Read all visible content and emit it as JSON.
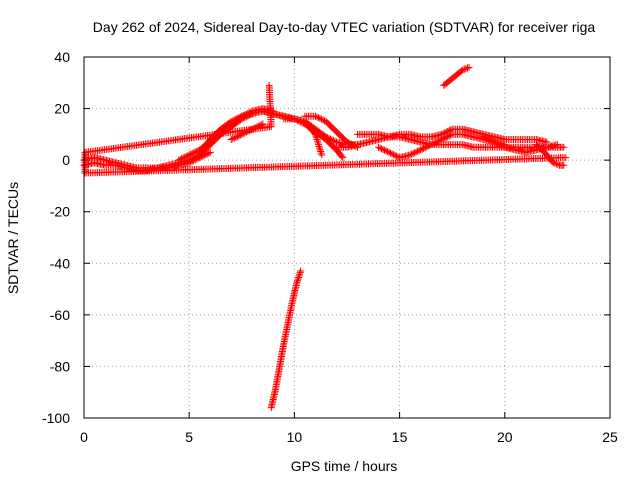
{
  "chart_data": {
    "type": "scatter",
    "title": "Day 262 of 2024, Sidereal Day-to-day VTEC variation (SDTVAR) for receiver riga",
    "xlabel": "GPS time / hours",
    "ylabel": "SDTVAR / TECUs",
    "xlim": [
      0,
      25
    ],
    "ylim": [
      -100,
      40
    ],
    "xticks": [
      0,
      5,
      10,
      15,
      20,
      25
    ],
    "yticks": [
      -100,
      -80,
      -60,
      -40,
      -20,
      0,
      20,
      40
    ],
    "grid": true,
    "marker": "+",
    "color": "#ff0000",
    "series": [
      {
        "name": "SDTVAR",
        "tracks": [
          {
            "x": [
              0,
              0.5,
              1,
              1.5,
              2,
              2.5,
              3,
              3.5,
              4,
              4.5,
              5,
              5.5,
              6,
              6.5,
              7,
              7.5,
              8,
              8.5,
              9,
              9.5,
              10,
              10.5,
              11,
              11.5,
              12,
              12.5,
              13
            ],
            "y": [
              0,
              1,
              0,
              -1,
              -2,
              -3,
              -3,
              -3,
              -2,
              -1,
              0,
              2,
              6,
              10,
              13,
              16,
              18,
              19,
              18,
              17,
              16,
              15,
              12,
              9,
              7,
              6,
              6
            ]
          },
          {
            "x": [
              0,
              0.5,
              1,
              1.5,
              2,
              2.5,
              3,
              3.5,
              4,
              4.5,
              5,
              5.5,
              6
            ],
            "y": [
              -2,
              -1,
              -2,
              -2,
              -3,
              -4,
              -4,
              -3,
              -3,
              -2,
              -1,
              1,
              3
            ]
          },
          {
            "x": [
              4.5,
              5,
              5.5,
              6,
              6.5,
              7,
              7.5,
              8,
              8.5,
              9
            ],
            "y": [
              0,
              2,
              4,
              7,
              11,
              14,
              17,
              19,
              20,
              19
            ]
          },
          {
            "x": [
              5.5,
              6,
              6.5,
              7,
              7.5,
              8
            ],
            "y": [
              3,
              8,
              12,
              15,
              17,
              18
            ]
          },
          {
            "x": [
              7,
              7.5,
              8,
              8.5
            ],
            "y": [
              8,
              10,
              12,
              14
            ]
          },
          {
            "x": [
              8.5,
              9,
              9.5,
              10,
              10.5,
              11,
              11.5,
              12,
              12.3
            ],
            "y": [
              19,
              18,
              17,
              16,
              14,
              11,
              8,
              4,
              1
            ]
          },
          {
            "x": [
              9.5,
              10,
              10.5,
              11,
              11.3
            ],
            "y": [
              16,
              16,
              15,
              10,
              2
            ]
          },
          {
            "x": [
              10.5,
              11,
              11.5,
              12,
              12.5,
              13
            ],
            "y": [
              17,
              17,
              15,
              11,
              7,
              5
            ]
          },
          {
            "x": [
              12,
              12.5,
              13,
              13.5,
              14,
              14.5,
              15,
              15.5,
              16,
              16.5,
              17,
              17.5,
              18,
              18.5,
              19,
              19.5,
              20,
              20.5,
              21,
              21.5,
              22,
              22.5,
              22.8
            ],
            "y": [
              5,
              5,
              6,
              7,
              8,
              9,
              9,
              8,
              7,
              6,
              6,
              6,
              6,
              5,
              5,
              5,
              5,
              5,
              5,
              5,
              5,
              5,
              5
            ]
          },
          {
            "x": [
              13,
              13.5,
              14,
              14.5,
              15,
              15.5,
              16,
              16.5,
              17,
              17.5,
              18,
              18.5,
              19,
              19.5,
              20,
              20.5,
              21,
              21.5,
              22
            ],
            "y": [
              10,
              10,
              10,
              9,
              10,
              10,
              9,
              9,
              10,
              12,
              12,
              11,
              10,
              9,
              8,
              8,
              8,
              8,
              7
            ]
          },
          {
            "x": [
              14,
              14.5,
              15,
              15.5,
              16,
              16.5,
              17,
              17.5,
              18,
              18.5,
              19,
              19.5,
              20
            ],
            "y": [
              5,
              3,
              1,
              2,
              4,
              6,
              8,
              10,
              10,
              9,
              8,
              7,
              6
            ]
          },
          {
            "x": [
              19,
              19.5,
              20,
              20.5,
              21,
              21.5,
              22,
              22.5
            ],
            "y": [
              9,
              7,
              5,
              4,
              3,
              4,
              5,
              6
            ]
          },
          {
            "x": [
              21.5,
              22,
              22.3,
              22.6,
              22.8
            ],
            "y": [
              6,
              2,
              -1,
              -2,
              -2
            ]
          },
          {
            "x": [
              8.9,
              9.1,
              9.3,
              9.5,
              9.7,
              9.9,
              10.1,
              10.3
            ],
            "y": [
              -96,
              -89,
              -80,
              -71,
              -63,
              -55,
              -48,
              -43
            ]
          },
          {
            "x": [
              17.1,
              17.4,
              17.7,
              18.0,
              18.3
            ],
            "y": [
              29,
              31,
              33,
              35,
              36
            ]
          },
          {
            "x": [
              8.8,
              8.9,
              0.05,
              0.05,
              22.9
            ],
            "y": [
              29,
              13,
              3,
              -5,
              1
            ]
          }
        ]
      }
    ]
  }
}
